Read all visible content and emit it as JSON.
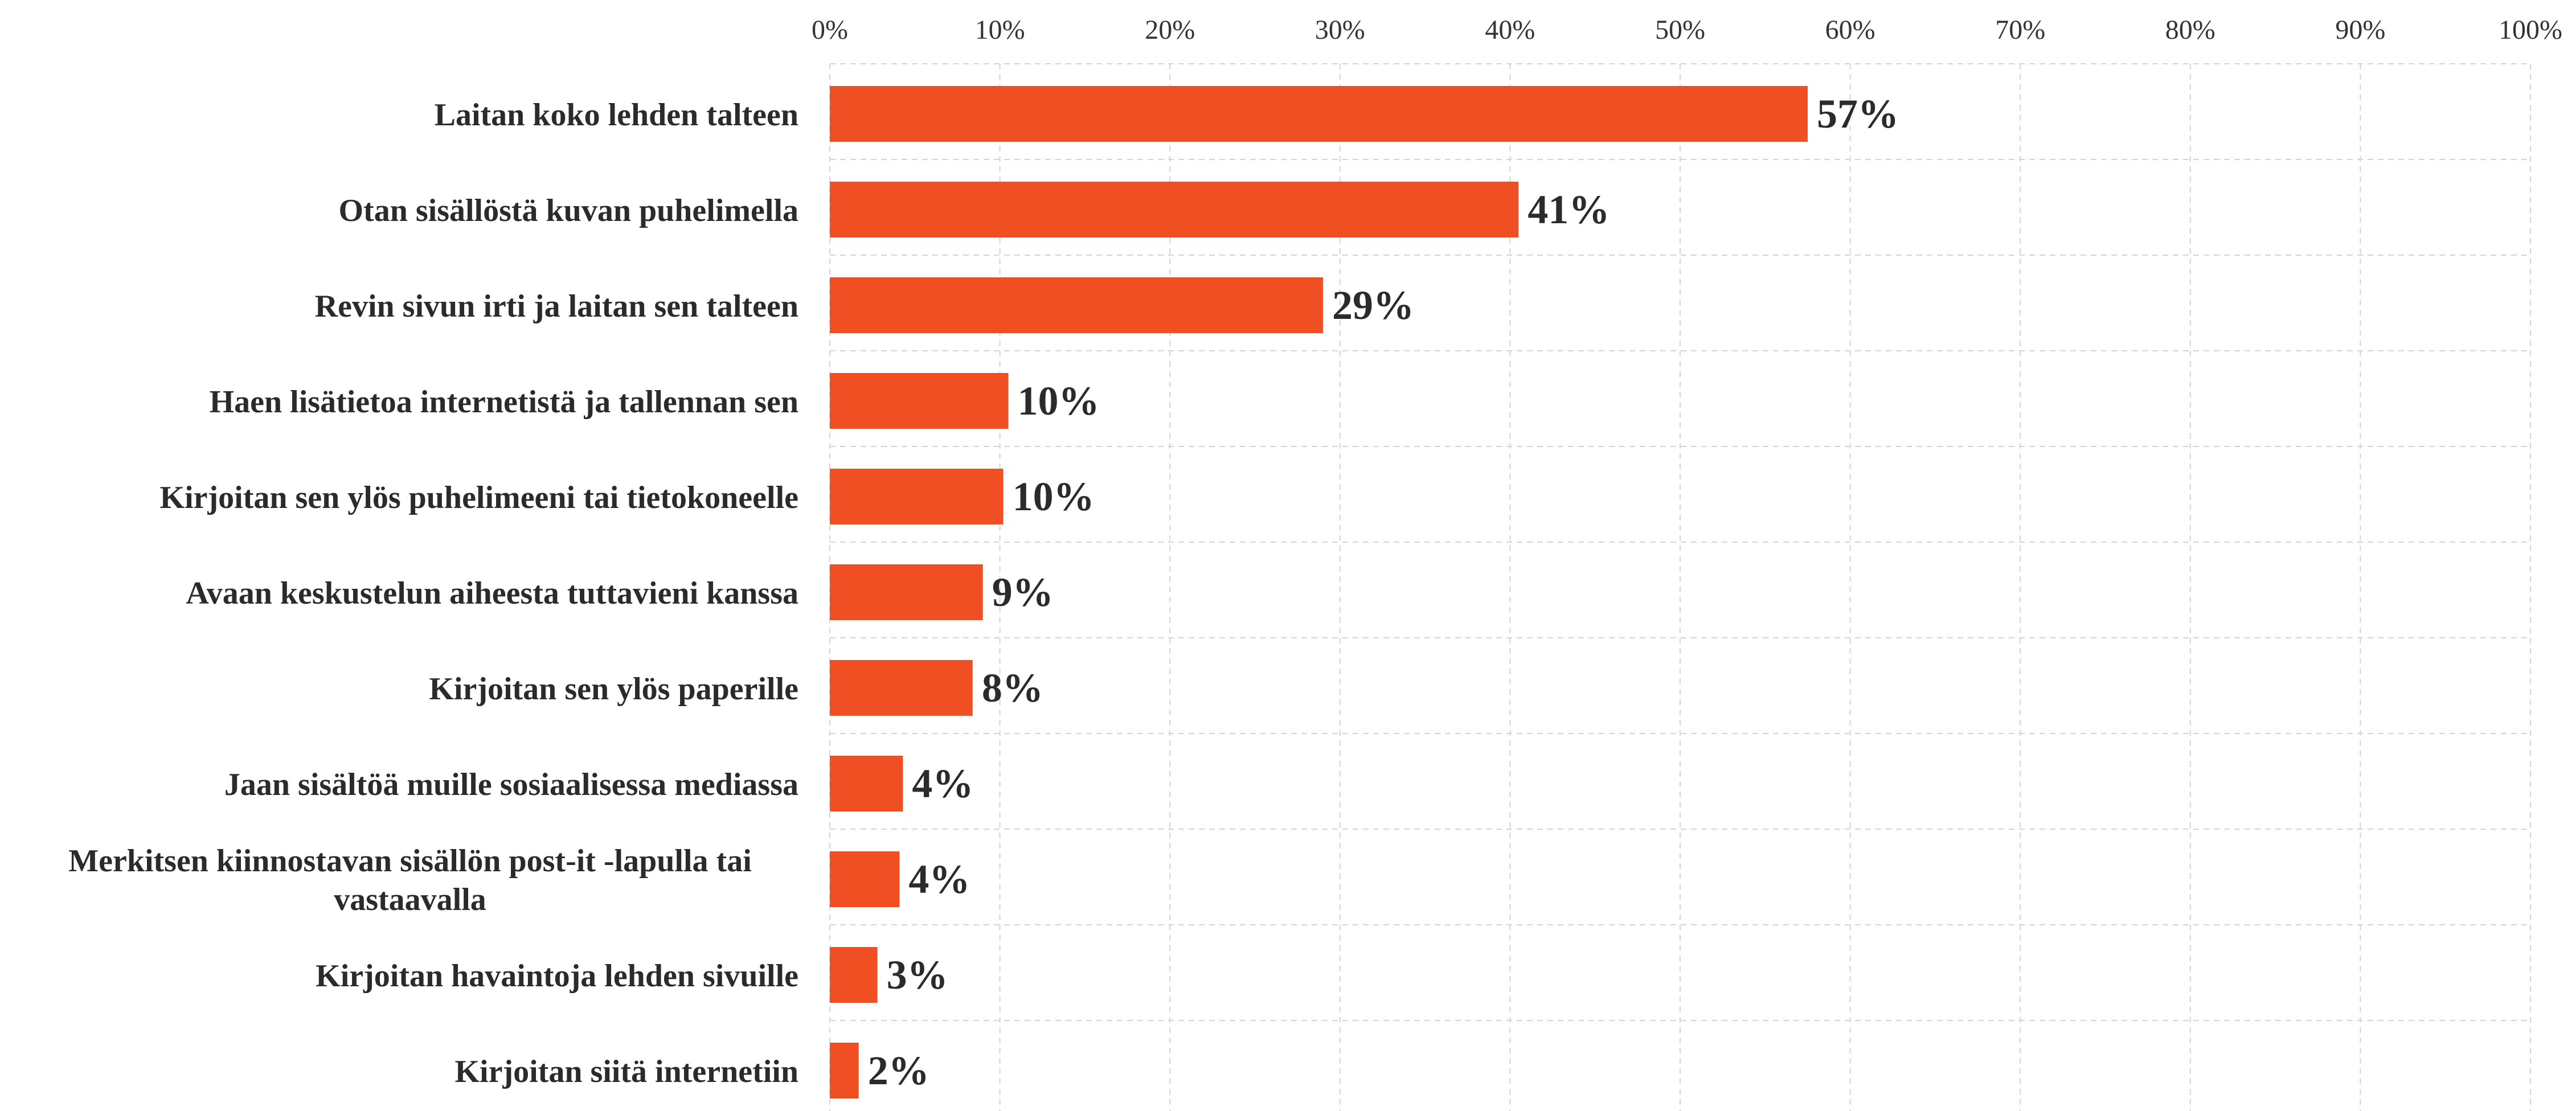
{
  "chart_data": {
    "type": "bar",
    "orientation": "horizontal",
    "title": "",
    "xlabel": "",
    "ylabel": "",
    "xlim": [
      0,
      100
    ],
    "x_ticks": [
      "0%",
      "10%",
      "20%",
      "30%",
      "40%",
      "50%",
      "60%",
      "70%",
      "80%",
      "90%",
      "100%"
    ],
    "x_axis_position": "top",
    "grid": true,
    "legend": "none",
    "bar_color": "#f04e23",
    "value_suffix": "%",
    "categories": [
      "Laitan koko lehden talteen",
      "Otan sisällöstä kuvan puhelimella",
      "Revin sivun irti ja laitan sen talteen",
      "Haen lisätietoa internetistä ja tallennan sen",
      "Kirjoitan sen ylös puhelimeeni tai tietokoneelle",
      "Avaan keskustelun aiheesta tuttavieni kanssa",
      "Kirjoitan sen ylös paperille",
      "Jaan sisältöä muille sosiaalisessa mediassa",
      "Merkitsen kiinnostavan sisällön post-it -lapulla tai vastaavalla",
      "Kirjoitan havaintoja lehden sivuille",
      "Kirjoitan siitä internetiin"
    ],
    "category_lines": [
      [
        "Laitan koko lehden talteen"
      ],
      [
        "Otan sisällöstä kuvan puhelimella"
      ],
      [
        "Revin sivun irti ja laitan sen talteen"
      ],
      [
        "Haen lisätietoa internetistä ja tallennan sen"
      ],
      [
        "Kirjoitan sen ylös puhelimeeni tai tietokoneelle"
      ],
      [
        "Avaan keskustelun aiheesta tuttavieni kanssa"
      ],
      [
        "Kirjoitan sen ylös paperille"
      ],
      [
        "Jaan sisältöä muille sosiaalisessa mediassa"
      ],
      [
        "Merkitsen kiinnostavan sisällön post-it -lapulla tai",
        "vastaavalla"
      ],
      [
        "Kirjoitan havaintoja lehden sivuille"
      ],
      [
        "Kirjoitan siitä internetiin"
      ]
    ],
    "values": [
      57.5,
      40.5,
      29,
      10.5,
      10.2,
      9,
      8.4,
      4.3,
      4.1,
      2.8,
      1.7
    ],
    "value_labels": [
      "57%",
      "41%",
      "29%",
      "10%",
      "10%",
      "9%",
      "8%",
      "4%",
      "4%",
      "3%",
      "2%"
    ]
  }
}
